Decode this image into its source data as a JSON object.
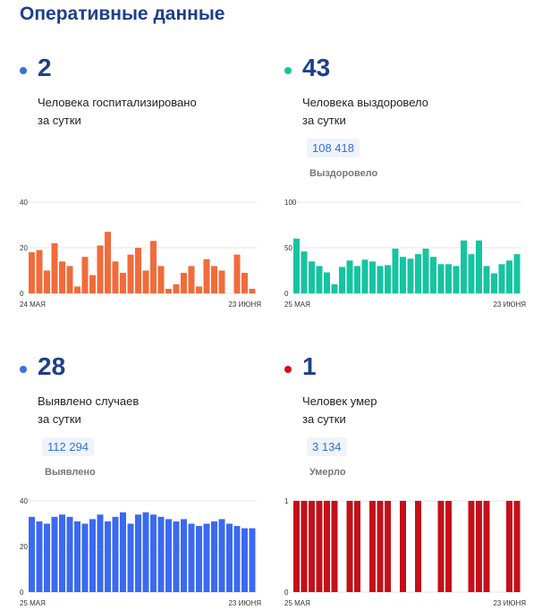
{
  "title": "Оперативные данные",
  "blocks": [
    {
      "big": "2",
      "desc": "Человека госпитализировано\nза сутки",
      "badge": "",
      "sublabel": "",
      "dot_color": "#3b6fe0",
      "bar_color": "#f26b3a"
    },
    {
      "big": "43",
      "desc": "Человека выздоровело\nза сутки",
      "badge": "108 418",
      "sublabel": "Выздоровело",
      "dot_color": "#15c4a0",
      "bar_color": "#15c4a0"
    },
    {
      "big": "28",
      "desc": "Выявлено случаев\nза сутки",
      "badge": "112 294",
      "sublabel": "Выявлено",
      "dot_color": "#3b6fe0",
      "bar_color": "#3b6af0"
    },
    {
      "big": "1",
      "desc": "Человек умер\nза сутки",
      "badge": "3 134",
      "sublabel": "Умерло",
      "dot_color": "#d0101b",
      "bar_color": "#c4101a"
    }
  ],
  "chart_data": [
    {
      "type": "bar",
      "x_start_label": "24 МАЯ",
      "x_end_label": "23 ИЮНЯ",
      "ylim": [
        0,
        40
      ],
      "yticks": [
        0,
        20,
        40
      ],
      "values": [
        18,
        19,
        10,
        22,
        14,
        12,
        3,
        16,
        8,
        21,
        27,
        14,
        9,
        17,
        20,
        10,
        23,
        12,
        2,
        4,
        9,
        12,
        3,
        15,
        12,
        10,
        0,
        17,
        9,
        2
      ]
    },
    {
      "type": "bar",
      "x_start_label": "25 МАЯ",
      "x_end_label": "23 ИЮНЯ",
      "ylim": [
        0,
        100
      ],
      "yticks": [
        0,
        50,
        100
      ],
      "values": [
        60,
        46,
        35,
        30,
        23,
        10,
        29,
        36,
        30,
        37,
        35,
        30,
        31,
        49,
        40,
        38,
        43,
        49,
        40,
        32,
        32,
        30,
        58,
        43,
        58,
        30,
        22,
        32,
        36,
        43
      ]
    },
    {
      "type": "bar",
      "x_start_label": "25 МАЯ",
      "x_end_label": "23 ИЮНЯ",
      "ylim": [
        0,
        40
      ],
      "yticks": [
        0,
        20,
        40
      ],
      "values": [
        33,
        31,
        30,
        33,
        34,
        33,
        31,
        30,
        32,
        34,
        31,
        33,
        35,
        30,
        34,
        35,
        34,
        33,
        32,
        31,
        32,
        30,
        29,
        30,
        31,
        32,
        30,
        29,
        28,
        28
      ]
    },
    {
      "type": "bar",
      "x_start_label": "25 МАЯ",
      "x_end_label": "23 ИЮНЯ",
      "ylim": [
        0,
        1
      ],
      "yticks": [
        0,
        1
      ],
      "values": [
        1,
        1,
        1,
        1,
        1,
        1,
        0,
        1,
        1,
        0,
        1,
        1,
        1,
        0,
        1,
        0,
        1,
        0,
        0,
        1,
        1,
        0,
        0,
        1,
        1,
        1,
        0,
        0,
        1,
        1
      ]
    }
  ]
}
